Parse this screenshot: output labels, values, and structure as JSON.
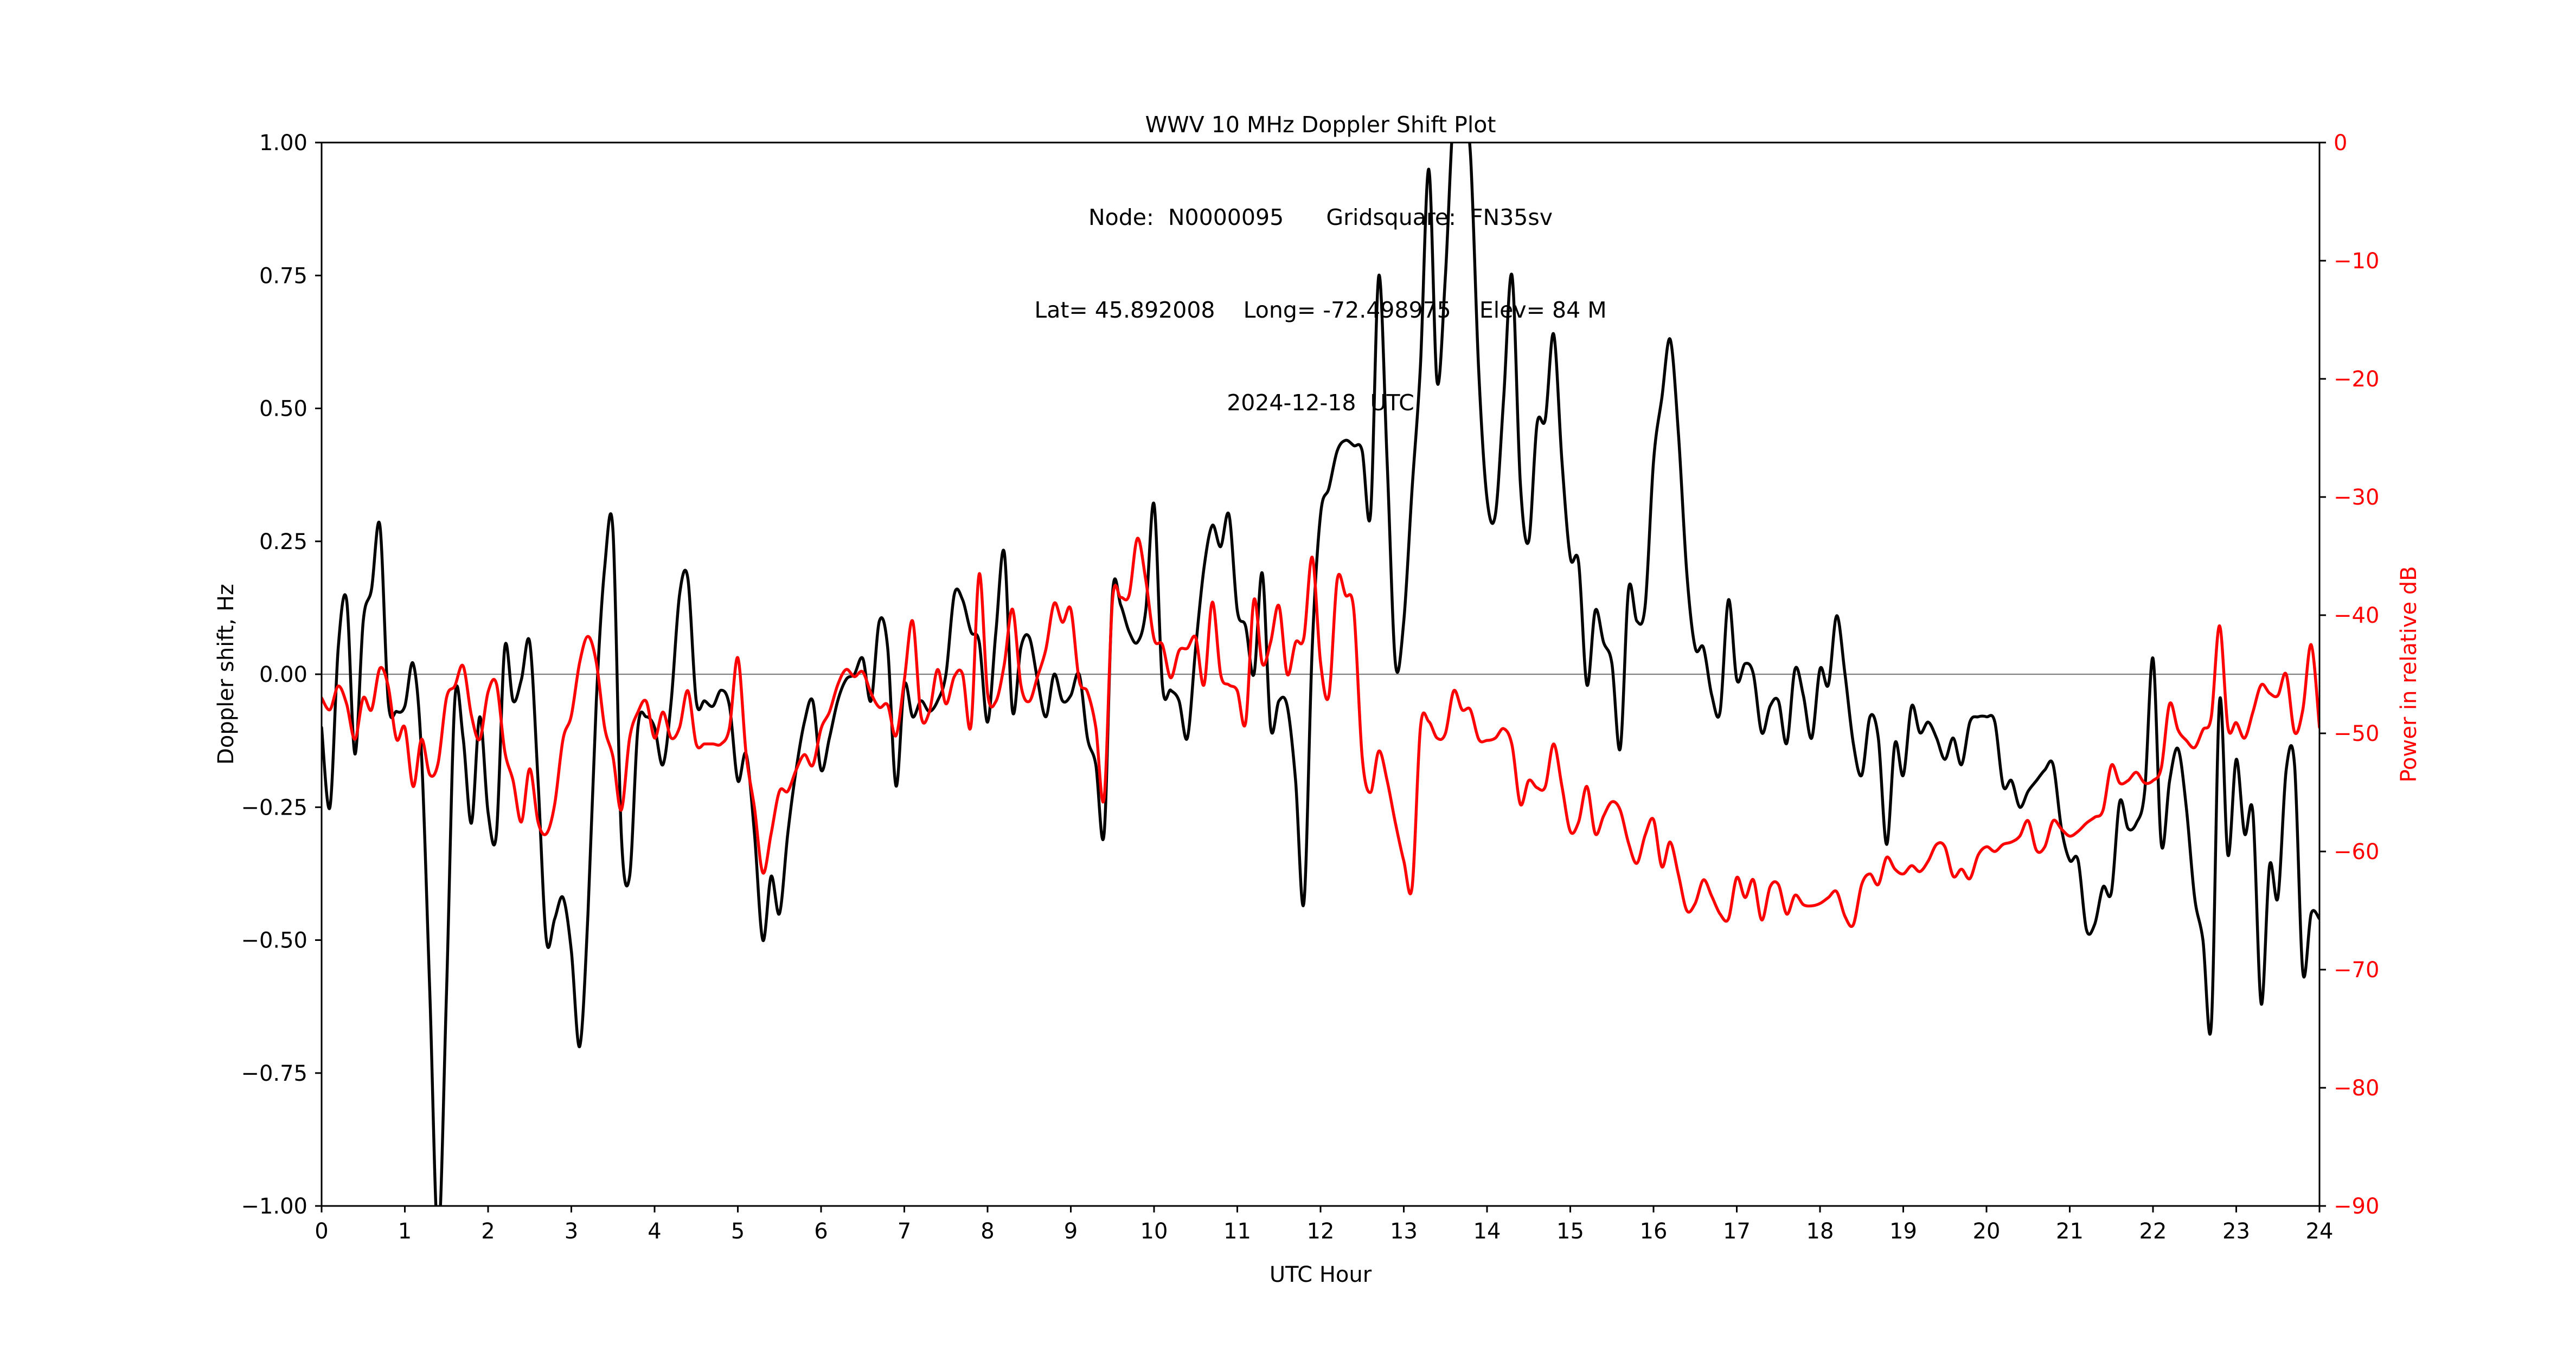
{
  "title": {
    "line1": "WWV 10 MHz Doppler Shift Plot",
    "line2": "Node:  N0000095      Gridsquare:  FN35sv",
    "line3": "Lat= 45.892008    Long= -72.498975    Elev= 84 M",
    "line4": "2024-12-18  UTC"
  },
  "chart_data": {
    "type": "line",
    "title": "WWV 10 MHz Doppler Shift Plot",
    "subtitle_lines": [
      "Node:  N0000095      Gridsquare:  FN35sv",
      "Lat= 45.892008    Long= -72.498975    Elev= 84 M",
      "2024-12-18  UTC"
    ],
    "xlabel": "UTC Hour",
    "grid": false,
    "legend": "none",
    "x_range": [
      0,
      24
    ],
    "x_tick_values": [
      0,
      1,
      2,
      3,
      4,
      5,
      6,
      7,
      8,
      9,
      10,
      11,
      12,
      13,
      14,
      15,
      16,
      17,
      18,
      19,
      20,
      21,
      22,
      23,
      24
    ],
    "x_tick_labels": [
      "0",
      "1",
      "2",
      "3",
      "4",
      "5",
      "6",
      "7",
      "8",
      "9",
      "10",
      "11",
      "12",
      "13",
      "14",
      "15",
      "16",
      "17",
      "18",
      "19",
      "20",
      "21",
      "22",
      "23",
      "24"
    ],
    "left_axis": {
      "label": "Doppler shift, Hz",
      "color": "#000000",
      "range": [
        -1.0,
        1.0
      ],
      "tick_values": [
        1.0,
        0.75,
        0.5,
        0.25,
        0.0,
        -0.25,
        -0.5,
        -0.75,
        -1.0
      ],
      "tick_labels": [
        "1.00",
        "0.75",
        "0.50",
        "0.25",
        "0.00",
        "−0.25",
        "−0.50",
        "−0.75",
        "−1.00"
      ]
    },
    "right_axis": {
      "label": "Power in relative dB",
      "color": "#ff0000",
      "range": [
        -90,
        0
      ],
      "tick_values": [
        0,
        -10,
        -20,
        -30,
        -40,
        -50,
        -60,
        -70,
        -80,
        -90
      ],
      "tick_labels": [
        "0",
        "−10",
        "−20",
        "−30",
        "−40",
        "−50",
        "−60",
        "−70",
        "−80",
        "−90"
      ]
    },
    "zero_line": {
      "value": 0.0,
      "color": "#808080"
    },
    "x_start": 0.0,
    "x_step": 0.1,
    "series": [
      {
        "name": "doppler_shift_hz",
        "axis": "left",
        "color": "#000000",
        "values": [
          -0.1,
          -0.25,
          0.05,
          0.14,
          -0.15,
          0.1,
          0.16,
          0.28,
          -0.05,
          -0.07,
          -0.06,
          0.02,
          -0.15,
          -0.6,
          -1.06,
          -0.6,
          -0.05,
          -0.12,
          -0.28,
          -0.08,
          -0.26,
          -0.3,
          0.05,
          -0.05,
          -0.01,
          0.06,
          -0.2,
          -0.5,
          -0.46,
          -0.42,
          -0.52,
          -0.7,
          -0.45,
          -0.05,
          0.2,
          0.27,
          -0.3,
          -0.38,
          -0.1,
          -0.08,
          -0.1,
          -0.17,
          -0.05,
          0.15,
          0.18,
          -0.05,
          -0.05,
          -0.06,
          -0.03,
          -0.06,
          -0.2,
          -0.15,
          -0.3,
          -0.5,
          -0.38,
          -0.45,
          -0.3,
          -0.18,
          -0.09,
          -0.05,
          -0.18,
          -0.12,
          -0.05,
          -0.01,
          0.0,
          0.03,
          -0.05,
          0.1,
          0.05,
          -0.21,
          -0.02,
          -0.08,
          -0.05,
          -0.07,
          -0.05,
          0.0,
          0.15,
          0.14,
          0.08,
          0.06,
          -0.09,
          0.08,
          0.23,
          -0.07,
          0.05,
          0.07,
          -0.01,
          -0.08,
          0.0,
          -0.05,
          -0.04,
          0.0,
          -0.12,
          -0.17,
          -0.3,
          0.15,
          0.13,
          0.08,
          0.06,
          0.12,
          0.32,
          -0.02,
          -0.03,
          -0.05,
          -0.12,
          0.05,
          0.2,
          0.28,
          0.24,
          0.3,
          0.12,
          0.09,
          0.0,
          0.19,
          -0.1,
          -0.05,
          -0.06,
          -0.2,
          -0.43,
          0.05,
          0.3,
          0.35,
          0.42,
          0.44,
          0.43,
          0.42,
          0.3,
          0.75,
          0.4,
          0.02,
          0.1,
          0.35,
          0.58,
          0.95,
          0.55,
          0.75,
          1.06,
          1.06,
          0.98,
          0.57,
          0.33,
          0.3,
          0.52,
          0.75,
          0.36,
          0.25,
          0.47,
          0.48,
          0.64,
          0.4,
          0.22,
          0.21,
          -0.02,
          0.12,
          0.06,
          0.02,
          -0.14,
          0.16,
          0.1,
          0.13,
          0.4,
          0.52,
          0.63,
          0.45,
          0.19,
          0.05,
          0.05,
          -0.04,
          -0.07,
          0.14,
          -0.01,
          0.02,
          0.0,
          -0.11,
          -0.06,
          -0.05,
          -0.13,
          0.01,
          -0.04,
          -0.12,
          0.01,
          -0.02,
          0.11,
          0.0,
          -0.13,
          -0.19,
          -0.08,
          -0.12,
          -0.32,
          -0.13,
          -0.19,
          -0.06,
          -0.11,
          -0.09,
          -0.12,
          -0.16,
          -0.12,
          -0.17,
          -0.09,
          -0.08,
          -0.08,
          -0.09,
          -0.21,
          -0.2,
          -0.25,
          -0.22,
          -0.2,
          -0.18,
          -0.17,
          -0.29,
          -0.35,
          -0.35,
          -0.48,
          -0.47,
          -0.4,
          -0.41,
          -0.24,
          -0.29,
          -0.28,
          -0.22,
          0.03,
          -0.32,
          -0.2,
          -0.14,
          -0.25,
          -0.42,
          -0.5,
          -0.66,
          -0.05,
          -0.34,
          -0.16,
          -0.3,
          -0.26,
          -0.62,
          -0.36,
          -0.42,
          -0.18,
          -0.17,
          -0.56,
          -0.45,
          -0.46
        ]
      },
      {
        "name": "power_relative_db",
        "axis": "right",
        "color": "#ff0000",
        "values": [
          -47.0,
          -48.0,
          -46.0,
          -47.5,
          -50.5,
          -47.0,
          -48.0,
          -44.5,
          -46.0,
          -50.5,
          -49.5,
          -54.5,
          -50.5,
          -53.5,
          -52.5,
          -47.0,
          -46.0,
          -44.3,
          -48.5,
          -50.5,
          -46.5,
          -45.8,
          -51.5,
          -54.0,
          -57.5,
          -53.0,
          -57.5,
          -58.5,
          -56.0,
          -50.5,
          -48.5,
          -44.0,
          -41.8,
          -44.0,
          -49.5,
          -52.0,
          -56.5,
          -50.4,
          -48.2,
          -47.3,
          -50.4,
          -48.2,
          -50.4,
          -49.5,
          -46.4,
          -50.9,
          -50.9,
          -50.9,
          -50.9,
          -49.5,
          -43.6,
          -51.8,
          -56.3,
          -61.8,
          -58.5,
          -54.9,
          -54.9,
          -53.1,
          -51.8,
          -52.7,
          -49.6,
          -48.2,
          -45.9,
          -44.6,
          -45.2,
          -44.8,
          -46.6,
          -47.8,
          -47.6,
          -50.2,
          -45.5,
          -40.5,
          -48.5,
          -48.2,
          -44.6,
          -47.5,
          -45.2,
          -45.0,
          -49.4,
          -36.5,
          -46.6,
          -47.3,
          -44.2,
          -39.5,
          -45.9,
          -47.3,
          -45.2,
          -42.9,
          -39.0,
          -40.6,
          -39.5,
          -45.5,
          -46.5,
          -49.5,
          -55.5,
          -38.8,
          -38.5,
          -38.3,
          -33.5,
          -37.0,
          -42.0,
          -42.5,
          -45.3,
          -43.0,
          -42.8,
          -41.9,
          -45.9,
          -38.9,
          -45.0,
          -45.9,
          -46.4,
          -49.1,
          -38.7,
          -44.1,
          -42.3,
          -39.2,
          -45.0,
          -42.3,
          -41.9,
          -35.1,
          -44.0,
          -46.8,
          -37.0,
          -38.3,
          -39.6,
          -52.0,
          -55.0,
          -51.5,
          -54.0,
          -57.6,
          -60.8,
          -63.0,
          -49.5,
          -49.0,
          -50.4,
          -50.0,
          -46.4,
          -48.0,
          -48.0,
          -50.5,
          -50.6,
          -50.4,
          -49.6,
          -51.0,
          -56.0,
          -54.0,
          -54.6,
          -54.5,
          -50.9,
          -54.5,
          -58.3,
          -57.5,
          -54.5,
          -58.5,
          -57.0,
          -55.8,
          -56.5,
          -59.3,
          -61.0,
          -58.6,
          -57.3,
          -61.3,
          -59.2,
          -62.0,
          -65.0,
          -64.4,
          -62.4,
          -63.8,
          -65.3,
          -65.7,
          -62.2,
          -63.9,
          -62.4,
          -65.8,
          -63.0,
          -62.8,
          -65.3,
          -63.7,
          -64.5,
          -64.6,
          -64.4,
          -63.9,
          -63.4,
          -65.5,
          -66.2,
          -62.8,
          -61.9,
          -62.8,
          -60.5,
          -61.5,
          -61.9,
          -61.2,
          -61.7,
          -60.8,
          -59.4,
          -59.6,
          -62.1,
          -61.5,
          -62.3,
          -60.3,
          -59.6,
          -60.0,
          -59.4,
          -59.2,
          -58.7,
          -57.4,
          -59.9,
          -59.6,
          -57.4,
          -58.1,
          -58.7,
          -58.3,
          -57.6,
          -57.1,
          -56.5,
          -52.7,
          -54.2,
          -54.0,
          -53.3,
          -54.2,
          -54.0,
          -52.9,
          -47.5,
          -49.7,
          -50.6,
          -51.2,
          -49.7,
          -48.6,
          -40.9,
          -49.5,
          -49.1,
          -50.4,
          -48.2,
          -45.9,
          -46.6,
          -46.8,
          -45.0,
          -49.9,
          -48.0,
          -42.5,
          -49.5
        ]
      }
    ]
  }
}
